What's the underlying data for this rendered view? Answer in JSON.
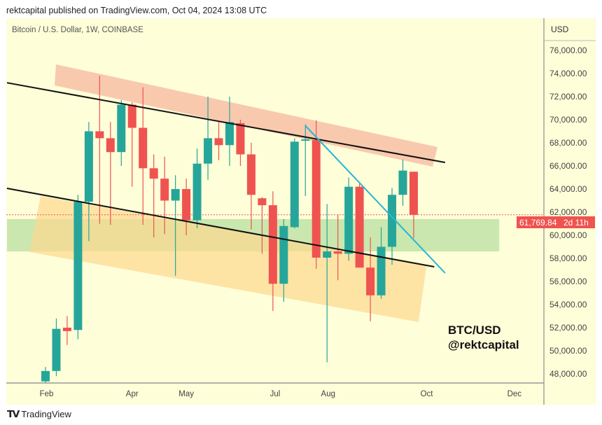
{
  "header": {
    "published": "rektcapital published on TradingView.com, Oct 04, 2024 13:08 UTC"
  },
  "brand": {
    "logo": "TV",
    "name": "TradingView"
  },
  "colors": {
    "background": "#fefed9",
    "up": "#26a69a",
    "down": "#ef5350",
    "trendline": "#111111",
    "cyan": "#29b6d6",
    "resistance_band": "#f8bfa6",
    "support_band": "#fcd98e",
    "green_zone": "#bfe3a6"
  },
  "chart_data": {
    "type": "candlestick",
    "title": "Bitcoin / U.S. Dollar, 1W, COINBASE",
    "currency_label": "USD",
    "ylim": [
      47000,
      78000
    ],
    "y_ticks": [
      "76,000.00",
      "74,000.00",
      "72,000.00",
      "70,000.00",
      "68,000.00",
      "66,000.00",
      "64,000.00",
      "62,000.00",
      "60,000.00",
      "58,000.00",
      "56,000.00",
      "54,000.00",
      "52,000.00",
      "50,000.00",
      "48,000.00"
    ],
    "y_tick_values": [
      76000,
      74000,
      72000,
      70000,
      68000,
      66000,
      64000,
      62000,
      60000,
      58000,
      56000,
      54000,
      52000,
      50000,
      48000
    ],
    "x_ticks": [
      {
        "label": "Feb",
        "week_index": 0.1
      },
      {
        "label": "Apr",
        "week_index": 8
      },
      {
        "label": "May",
        "week_index": 13
      },
      {
        "label": "Jul",
        "week_index": 21.2
      },
      {
        "label": "Aug",
        "week_index": 26.1
      },
      {
        "label": "Oct",
        "week_index": 35.2
      },
      {
        "label": "Dec",
        "week_index": 43.3
      }
    ],
    "candles": [
      [
        47350,
        48600,
        46800,
        48250
      ],
      [
        48250,
        52800,
        47800,
        51900
      ],
      [
        52000,
        53000,
        50500,
        51700
      ],
      [
        51800,
        63500,
        51000,
        62900
      ],
      [
        62900,
        69800,
        59500,
        69000
      ],
      [
        69000,
        73800,
        61000,
        68400
      ],
      [
        68400,
        69800,
        60900,
        67200
      ],
      [
        67200,
        71700,
        66000,
        71300
      ],
      [
        71300,
        71500,
        64200,
        69300
      ],
      [
        69300,
        72800,
        60900,
        65800
      ],
      [
        65800,
        67000,
        59800,
        64900
      ],
      [
        64900,
        66800,
        60100,
        63000
      ],
      [
        63000,
        65200,
        56500,
        64000
      ],
      [
        64000,
        64900,
        60000,
        61300
      ],
      [
        61300,
        67500,
        60600,
        66200
      ],
      [
        66200,
        72000,
        64800,
        68400
      ],
      [
        68400,
        69800,
        66500,
        67800
      ],
      [
        67800,
        72000,
        66000,
        69800
      ],
      [
        69700,
        70000,
        66000,
        67000
      ],
      [
        67000,
        68000,
        60500,
        63500
      ],
      [
        63200,
        63300,
        58400,
        62600
      ],
      [
        62600,
        63800,
        53450,
        55800
      ],
      [
        55800,
        61400,
        54250,
        60800
      ],
      [
        60700,
        68400,
        60600,
        68100
      ],
      [
        68200,
        69600,
        63400,
        68300
      ],
      [
        68250,
        69940,
        57100,
        58060
      ],
      [
        58060,
        62700,
        49000,
        58600
      ],
      [
        58600,
        61800,
        56100,
        58400
      ],
      [
        58400,
        65000,
        57800,
        64200
      ],
      [
        64200,
        64500,
        57200,
        57200
      ],
      [
        57200,
        59800,
        52550,
        54800
      ],
      [
        54800,
        60700,
        54500,
        59000
      ],
      [
        59000,
        64100,
        57450,
        63500
      ],
      [
        63500,
        66550,
        62550,
        65600
      ],
      [
        65500,
        65500,
        59750,
        61769.84
      ]
    ],
    "last_price": {
      "value": "61,769.84",
      "countdown": "2d 11h",
      "price": 61769.84
    },
    "annotations": {
      "upper_trendline": [
        [
          -3.56,
          73200
        ],
        [
          36.9,
          66300
        ]
      ],
      "lower_trendline": [
        [
          -3.56,
          64060
        ],
        [
          35.9,
          57270
        ]
      ],
      "cyan_trendline": [
        [
          23.98,
          69500
        ],
        [
          36.9,
          56730
        ]
      ],
      "resistance_band": [
        [
          0.97,
          74790
        ],
        [
          36.2,
          67640
        ],
        [
          35.75,
          65940
        ],
        [
          0.84,
          72970
        ]
      ],
      "support_band": [
        [
          -0.45,
          63400
        ],
        [
          35.2,
          57450
        ],
        [
          34.45,
          52490
        ],
        [
          -1.49,
          58550
        ]
      ],
      "green_zone": {
        "from_index": -3.56,
        "to_index": 41.9,
        "low": 58600,
        "high": 61400
      },
      "watermark": [
        "BTC/USD",
        "@rektcapital"
      ]
    }
  }
}
